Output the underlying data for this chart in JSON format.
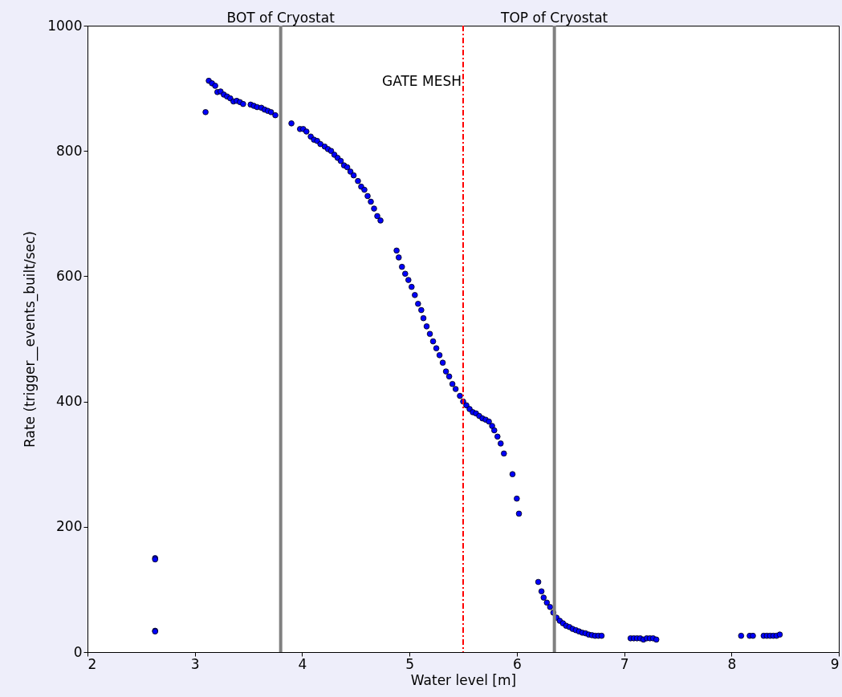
{
  "chart_data": {
    "type": "scatter",
    "xlabel": "Water level [m]",
    "ylabel": "Rate (trigger__events_built/sec)",
    "xlim": [
      2,
      9
    ],
    "xticks": [
      2,
      3,
      4,
      5,
      6,
      7,
      8,
      9
    ],
    "ylim": [
      0,
      1000
    ],
    "yticks": [
      0,
      200,
      400,
      600,
      800,
      1000
    ],
    "grid": false,
    "marker": "circle",
    "series": [
      {
        "color": "#0000ff",
        "x": [
          2.63,
          2.63,
          2.63,
          2.63,
          3.1,
          3.13,
          3.16,
          3.19,
          3.21,
          3.24,
          3.27,
          3.3,
          3.33,
          3.36,
          3.39,
          3.42,
          3.45,
          3.52,
          3.55,
          3.58,
          3.62,
          3.65,
          3.68,
          3.71,
          3.75,
          3.9,
          3.98,
          4.01,
          4.04,
          4.08,
          4.11,
          4.14,
          4.17,
          4.21,
          4.24,
          4.27,
          4.3,
          4.33,
          4.36,
          4.39,
          4.42,
          4.45,
          4.48,
          4.52,
          4.55,
          4.58,
          4.61,
          4.64,
          4.67,
          4.7,
          4.73,
          4.88,
          4.9,
          4.93,
          4.96,
          4.99,
          5.02,
          5.05,
          5.08,
          5.11,
          5.13,
          5.16,
          5.19,
          5.22,
          5.25,
          5.28,
          5.31,
          5.34,
          5.37,
          5.4,
          5.43,
          5.47,
          5.5,
          5.53,
          5.56,
          5.59,
          5.62,
          5.65,
          5.68,
          5.71,
          5.74,
          5.77,
          5.79,
          5.82,
          5.85,
          5.88,
          5.96,
          6.0,
          6.02,
          6.2,
          6.23,
          6.25,
          6.28,
          6.31,
          6.34,
          6.37,
          6.4,
          6.43,
          6.46,
          6.49,
          6.52,
          6.55,
          6.58,
          6.61,
          6.64,
          6.67,
          6.7,
          6.73,
          6.76,
          6.79,
          7.06,
          7.09,
          7.12,
          7.15,
          7.18,
          7.21,
          7.24,
          7.27,
          7.3,
          8.09,
          8.17,
          8.2,
          8.3,
          8.33,
          8.36,
          8.39,
          8.42,
          8.45
        ],
        "values": [
          150,
          148,
          34,
          33,
          862,
          912,
          908,
          904,
          894,
          895,
          890,
          887,
          884,
          879,
          880,
          878,
          875,
          874,
          872,
          870,
          869,
          866,
          864,
          862,
          857,
          844,
          835,
          835,
          831,
          823,
          818,
          816,
          811,
          807,
          803,
          800,
          794,
          789,
          784,
          777,
          774,
          767,
          761,
          752,
          743,
          738,
          728,
          719,
          708,
          696,
          689,
          641,
          630,
          615,
          604,
          594,
          583,
          570,
          556,
          546,
          533,
          520,
          508,
          496,
          485,
          474,
          462,
          448,
          440,
          428,
          420,
          409,
          400,
          394,
          388,
          383,
          381,
          377,
          373,
          371,
          368,
          361,
          354,
          344,
          333,
          317,
          284,
          245,
          221,
          112,
          97,
          87,
          79,
          72,
          63,
          55,
          50,
          46,
          42,
          40,
          37,
          35,
          33,
          31,
          30,
          28,
          27,
          26,
          26,
          26,
          22,
          22,
          22,
          22,
          20,
          22,
          22,
          22,
          20,
          26,
          26,
          26,
          26,
          26,
          26,
          26,
          26,
          28
        ]
      }
    ],
    "ref_lines": [
      {
        "axis": "x",
        "value": 3.8,
        "label": "BOT of Cryostat",
        "color": "#808080",
        "line_style": "solid"
      },
      {
        "axis": "x",
        "value": 5.5,
        "label": "GATE MESH",
        "color": "#ff0000",
        "line_style": "dashed"
      },
      {
        "axis": "x",
        "value": 6.35,
        "label": "TOP of Cryostat",
        "color": "#808080",
        "line_style": "solid"
      }
    ]
  }
}
